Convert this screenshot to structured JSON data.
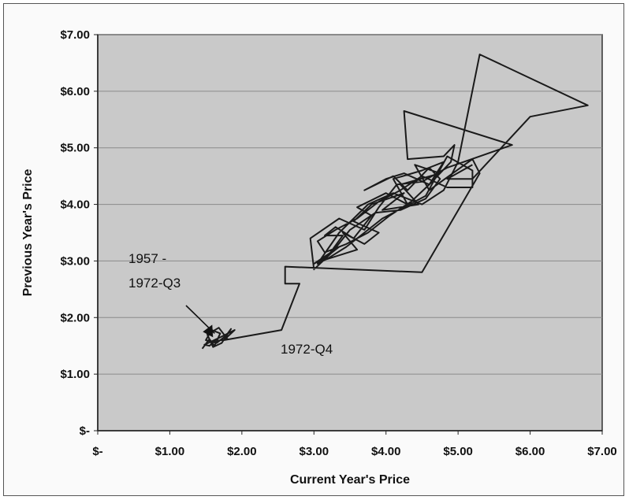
{
  "chart_data": {
    "type": "line",
    "title": "",
    "xlabel": "Current Year's Price",
    "ylabel": "Previous Year's Price",
    "xlim": [
      0,
      7
    ],
    "ylim": [
      0,
      7
    ],
    "x_tick_labels": [
      "$-",
      "$1.00",
      "$2.00",
      "$3.00",
      "$4.00",
      "$5.00",
      "$6.00",
      "$7.00"
    ],
    "y_tick_labels": [
      "$-",
      "$1.00",
      "$2.00",
      "$3.00",
      "$4.00",
      "$5.00",
      "$6.00",
      "$7.00"
    ],
    "grid": true,
    "legend": "none",
    "colors": {
      "plot_background": "#c9c9c9",
      "line": "#1a1a1a",
      "gridline": "#8a8a8a"
    },
    "annotations": [
      {
        "label_line1": "1957 -",
        "label_line2": "1972-Q3",
        "arrow_to": [
          1.6,
          1.65
        ]
      },
      {
        "label": "1972-Q4",
        "at": [
          2.55,
          1.75
        ]
      }
    ],
    "series": [
      {
        "points": [
          [
            1.45,
            1.45
          ],
          [
            1.55,
            1.62
          ],
          [
            1.62,
            1.5
          ],
          [
            1.7,
            1.72
          ],
          [
            1.58,
            1.78
          ],
          [
            1.5,
            1.6
          ],
          [
            1.65,
            1.55
          ],
          [
            1.78,
            1.68
          ],
          [
            1.85,
            1.8
          ],
          [
            1.72,
            1.55
          ],
          [
            1.6,
            1.48
          ],
          [
            1.52,
            1.7
          ],
          [
            1.68,
            1.82
          ],
          [
            1.8,
            1.62
          ],
          [
            1.62,
            1.58
          ],
          [
            1.55,
            1.5
          ],
          [
            1.48,
            1.52
          ],
          [
            1.7,
            1.65
          ],
          [
            1.9,
            1.78
          ],
          [
            1.75,
            1.6
          ],
          [
            2.55,
            1.78
          ],
          [
            2.8,
            2.6
          ],
          [
            2.6,
            2.6
          ],
          [
            2.6,
            2.9
          ],
          [
            4.5,
            2.8
          ],
          [
            5.3,
            4.55
          ],
          [
            5.2,
            4.8
          ],
          [
            4.6,
            4.25
          ],
          [
            4.4,
            4.7
          ],
          [
            4.75,
            4.55
          ],
          [
            4.2,
            4.35
          ],
          [
            4.45,
            4.0
          ],
          [
            3.95,
            3.9
          ],
          [
            4.25,
            4.2
          ],
          [
            3.8,
            4.0
          ],
          [
            3.55,
            3.7
          ],
          [
            3.9,
            3.5
          ],
          [
            3.7,
            3.3
          ],
          [
            3.4,
            3.5
          ],
          [
            3.6,
            3.2
          ],
          [
            3.1,
            3.0
          ],
          [
            3.35,
            3.25
          ],
          [
            3.0,
            2.95
          ],
          [
            3.2,
            3.1
          ],
          [
            3.4,
            3.45
          ],
          [
            3.15,
            3.45
          ],
          [
            3.3,
            3.6
          ],
          [
            3.55,
            3.4
          ],
          [
            3.8,
            3.8
          ],
          [
            3.6,
            3.95
          ],
          [
            4.0,
            4.2
          ],
          [
            4.3,
            4.0
          ],
          [
            4.1,
            4.45
          ],
          [
            4.5,
            4.6
          ],
          [
            4.8,
            4.75
          ],
          [
            4.6,
            4.35
          ],
          [
            4.25,
            4.55
          ],
          [
            4.0,
            4.45
          ],
          [
            3.7,
            4.25
          ],
          [
            4.1,
            4.5
          ],
          [
            4.3,
            4.25
          ],
          [
            4.6,
            4.65
          ],
          [
            4.75,
            4.45
          ],
          [
            4.55,
            4.1
          ],
          [
            4.2,
            3.9
          ],
          [
            3.85,
            3.85
          ],
          [
            3.5,
            3.55
          ],
          [
            3.25,
            3.15
          ],
          [
            3.0,
            2.85
          ],
          [
            2.95,
            3.4
          ],
          [
            3.35,
            3.75
          ],
          [
            3.7,
            3.55
          ],
          [
            3.9,
            3.95
          ],
          [
            4.15,
            4.35
          ],
          [
            4.5,
            4.4
          ],
          [
            4.85,
            4.65
          ],
          [
            5.75,
            5.05
          ],
          [
            4.25,
            5.65
          ],
          [
            4.3,
            4.8
          ],
          [
            4.8,
            4.85
          ],
          [
            4.95,
            5.05
          ],
          [
            4.9,
            4.75
          ],
          [
            4.6,
            4.35
          ],
          [
            4.35,
            4.05
          ],
          [
            4.05,
            3.8
          ],
          [
            3.75,
            3.5
          ],
          [
            3.45,
            3.3
          ],
          [
            3.15,
            3.15
          ],
          [
            3.05,
            3.35
          ],
          [
            3.3,
            3.55
          ],
          [
            3.6,
            3.75
          ],
          [
            3.9,
            4.05
          ],
          [
            4.2,
            4.25
          ],
          [
            4.5,
            4.5
          ],
          [
            4.85,
            4.3
          ],
          [
            5.2,
            4.3
          ],
          [
            5.2,
            4.6
          ],
          [
            4.85,
            4.85
          ],
          [
            4.55,
            4.15
          ],
          [
            4.25,
            3.95
          ],
          [
            3.95,
            3.75
          ],
          [
            3.7,
            3.5
          ],
          [
            3.45,
            3.25
          ],
          [
            3.2,
            3.05
          ],
          [
            3.05,
            2.95
          ],
          [
            3.35,
            3.5
          ],
          [
            3.75,
            4.0
          ],
          [
            4.1,
            4.2
          ],
          [
            4.5,
            4.0
          ],
          [
            4.8,
            4.25
          ],
          [
            5.0,
            4.75
          ],
          [
            5.3,
            6.65
          ],
          [
            6.8,
            5.75
          ],
          [
            6.0,
            5.55
          ],
          [
            5.2,
            4.45
          ],
          [
            4.85,
            4.45
          ],
          [
            5.2,
            4.7
          ]
        ]
      }
    ]
  }
}
